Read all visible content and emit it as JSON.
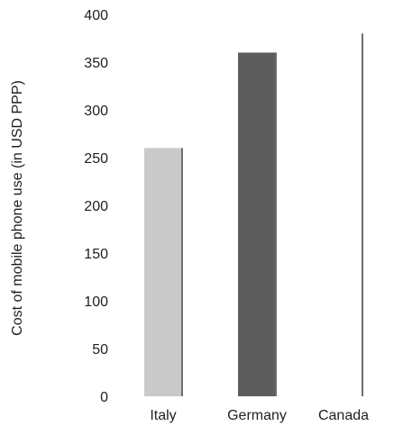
{
  "chart_data": {
    "type": "bar",
    "title": "",
    "xlabel": "",
    "ylabel": "Cost of mobile phone use (in USD PPP)",
    "categories": [
      "Italy",
      "Germany",
      "Canada"
    ],
    "values": [
      260,
      360,
      380
    ],
    "ylim": [
      0,
      400
    ],
    "yticks": [
      0,
      50,
      100,
      150,
      200,
      250,
      300,
      350,
      400
    ],
    "grid": false,
    "legend": "none",
    "colors": {
      "Italy": "#c9c9c9",
      "Germany": "#5d5d5d",
      "Canada": "#ffffff"
    },
    "edge_color": "#6f6f6f"
  }
}
